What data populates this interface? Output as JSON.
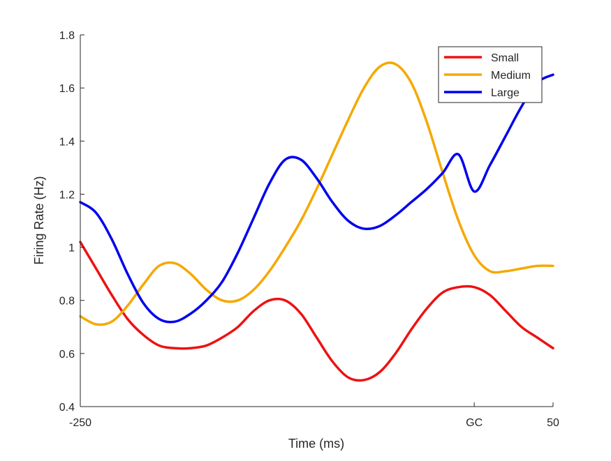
{
  "chart_data": {
    "type": "line",
    "xlabel": "Time (ms)",
    "ylabel": "Firing Rate (Hz)",
    "xlim": [
      -250,
      50
    ],
    "ylim": [
      0.4,
      1.8
    ],
    "xticks": [
      {
        "value": -250,
        "label": "-250"
      },
      {
        "value": 0,
        "label": "GC"
      },
      {
        "value": 50,
        "label": "50"
      }
    ],
    "yticks": [
      {
        "value": 0.4,
        "label": "0.4"
      },
      {
        "value": 0.6,
        "label": "0.6"
      },
      {
        "value": 0.8,
        "label": "0.8"
      },
      {
        "value": 1.0,
        "label": "1"
      },
      {
        "value": 1.2,
        "label": "1.2"
      },
      {
        "value": 1.4,
        "label": "1.4"
      },
      {
        "value": 1.6,
        "label": "1.6"
      },
      {
        "value": 1.8,
        "label": "1.8"
      }
    ],
    "grid": false,
    "legend_position": "top-right",
    "series": [
      {
        "name": "Small",
        "color": "#ee1111",
        "x": [
          -250,
          -240,
          -230,
          -220,
          -210,
          -200,
          -190,
          -180,
          -170,
          -160,
          -150,
          -140,
          -130,
          -120,
          -110,
          -100,
          -90,
          -80,
          -70,
          -60,
          -50,
          -40,
          -30,
          -20,
          -10,
          0,
          10,
          20,
          30,
          40,
          50
        ],
        "y": [
          1.02,
          0.92,
          0.82,
          0.73,
          0.67,
          0.63,
          0.62,
          0.62,
          0.63,
          0.66,
          0.7,
          0.76,
          0.8,
          0.8,
          0.75,
          0.66,
          0.57,
          0.51,
          0.5,
          0.53,
          0.6,
          0.69,
          0.77,
          0.83,
          0.85,
          0.85,
          0.82,
          0.76,
          0.7,
          0.66,
          0.62
        ]
      },
      {
        "name": "Medium",
        "color": "#f5a800",
        "x": [
          -250,
          -240,
          -230,
          -220,
          -210,
          -200,
          -190,
          -180,
          -170,
          -160,
          -150,
          -140,
          -130,
          -120,
          -110,
          -100,
          -90,
          -80,
          -70,
          -60,
          -50,
          -40,
          -30,
          -20,
          -10,
          0,
          10,
          20,
          30,
          40,
          50
        ],
        "y": [
          0.74,
          0.71,
          0.72,
          0.78,
          0.86,
          0.93,
          0.94,
          0.9,
          0.84,
          0.8,
          0.8,
          0.84,
          0.91,
          1.0,
          1.1,
          1.22,
          1.35,
          1.48,
          1.6,
          1.68,
          1.69,
          1.62,
          1.47,
          1.28,
          1.1,
          0.97,
          0.91,
          0.91,
          0.92,
          0.93,
          0.93
        ]
      },
      {
        "name": "Large",
        "color": "#0000ee",
        "x": [
          -250,
          -240,
          -230,
          -220,
          -210,
          -200,
          -190,
          -180,
          -170,
          -160,
          -150,
          -140,
          -130,
          -120,
          -110,
          -100,
          -90,
          -80,
          -70,
          -60,
          -50,
          -40,
          -30,
          -20,
          -10,
          0,
          10,
          20,
          30,
          40,
          50
        ],
        "y": [
          1.17,
          1.13,
          1.03,
          0.9,
          0.79,
          0.73,
          0.72,
          0.75,
          0.8,
          0.87,
          0.98,
          1.11,
          1.24,
          1.33,
          1.33,
          1.26,
          1.17,
          1.1,
          1.07,
          1.08,
          1.12,
          1.17,
          1.22,
          1.28,
          1.35,
          1.21,
          1.31,
          1.42,
          1.53,
          1.62,
          1.65
        ]
      }
    ]
  }
}
